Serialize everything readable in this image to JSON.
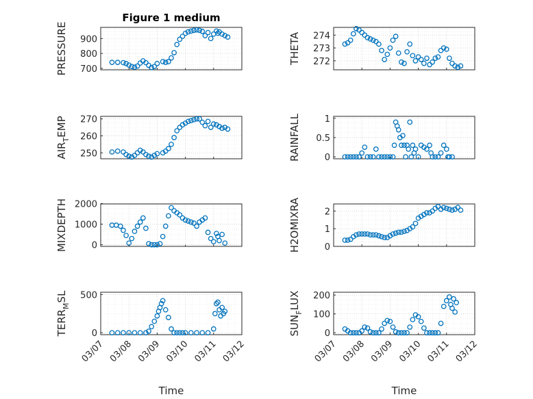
{
  "figure": {
    "title": "Figure 1 medium",
    "marker_color": "#0072BD"
  },
  "chart_data": [
    {
      "type": "scatter",
      "title": "Figure 1 medium",
      "ylabel": "PRESSURE",
      "xlabel": "",
      "ylim": [
        690,
        975
      ],
      "yticks": [
        700,
        800,
        900
      ],
      "xlim": [
        0,
        5
      ],
      "xticks": [
        "03/07",
        "03/08",
        "03/09",
        "03/10",
        "03/11",
        "03/12"
      ],
      "x": [
        0.4,
        0.6,
        0.8,
        0.9,
        1.0,
        1.1,
        1.2,
        1.3,
        1.4,
        1.5,
        1.6,
        1.7,
        1.8,
        1.9,
        2.0,
        2.2,
        2.3,
        2.4,
        2.5,
        2.6,
        2.7,
        2.8,
        2.9,
        3.0,
        3.1,
        3.2,
        3.3,
        3.4,
        3.5,
        3.6,
        3.7,
        3.8,
        3.9,
        4.0,
        4.1,
        4.15,
        4.2,
        4.3,
        4.4,
        4.5
      ],
      "y": [
        740,
        740,
        738,
        732,
        722,
        712,
        708,
        715,
        735,
        750,
        738,
        720,
        705,
        712,
        732,
        745,
        740,
        745,
        770,
        805,
        860,
        895,
        915,
        935,
        945,
        950,
        955,
        958,
        955,
        948,
        920,
        940,
        900,
        930,
        950,
        935,
        945,
        930,
        920,
        910
      ]
    },
    {
      "type": "scatter",
      "ylabel": "THETA",
      "xlabel": "",
      "ylim": [
        271.3,
        274.6
      ],
      "yticks": [
        272,
        273,
        274
      ],
      "xlim": [
        0,
        5
      ],
      "xticks": [
        "03/07",
        "03/08",
        "03/09",
        "03/10",
        "03/11",
        "03/12"
      ],
      "x": [
        0.4,
        0.5,
        0.6,
        0.7,
        0.8,
        0.9,
        1.0,
        1.1,
        1.2,
        1.3,
        1.4,
        1.5,
        1.6,
        1.7,
        1.8,
        1.9,
        2.0,
        2.1,
        2.2,
        2.3,
        2.4,
        2.5,
        2.6,
        2.7,
        2.8,
        2.9,
        3.0,
        3.1,
        3.2,
        3.3,
        3.4,
        3.5,
        3.6,
        3.7,
        3.8,
        3.9,
        4.0,
        4.1,
        4.2,
        4.3,
        4.4,
        4.5
      ],
      "y": [
        273.3,
        273.4,
        273.6,
        274.1,
        274.5,
        274.4,
        274.2,
        274.0,
        273.8,
        273.7,
        273.6,
        273.5,
        273.3,
        272.8,
        272.1,
        272.5,
        273.0,
        273.6,
        273.9,
        272.6,
        271.9,
        271.8,
        272.7,
        273.3,
        272.4,
        272.0,
        272.3,
        272.1,
        271.8,
        272.2,
        271.7,
        271.9,
        272.2,
        272.3,
        272.8,
        273.0,
        272.9,
        272.2,
        271.8,
        271.6,
        271.5,
        271.6
      ]
    },
    {
      "type": "scatter",
      "ylabel": "AIR_TEMP",
      "xlabel": "",
      "ylim": [
        246.5,
        271.5
      ],
      "yticks": [
        250,
        260,
        270
      ],
      "xlim": [
        0,
        5
      ],
      "xticks": [
        "03/07",
        "03/08",
        "03/09",
        "03/10",
        "03/11",
        "03/12"
      ],
      "x": [
        0.4,
        0.6,
        0.8,
        0.9,
        1.0,
        1.1,
        1.2,
        1.3,
        1.4,
        1.5,
        1.6,
        1.7,
        1.8,
        1.9,
        2.0,
        2.2,
        2.3,
        2.4,
        2.5,
        2.6,
        2.7,
        2.8,
        2.9,
        3.0,
        3.1,
        3.2,
        3.3,
        3.4,
        3.5,
        3.6,
        3.7,
        3.8,
        3.9,
        4.0,
        4.1,
        4.2,
        4.3,
        4.4,
        4.5
      ],
      "y": [
        250.5,
        251,
        250.5,
        249,
        248,
        247.5,
        248.5,
        250,
        251.5,
        250.5,
        249,
        248,
        247.5,
        248.5,
        249.5,
        250,
        251,
        252.5,
        255,
        259,
        263,
        265,
        266.5,
        267.5,
        268.5,
        269,
        269.5,
        270,
        270,
        268,
        266,
        268.5,
        265,
        267,
        266.5,
        265.5,
        264.5,
        265,
        264
      ]
    },
    {
      "type": "scatter",
      "ylabel": "RAINFALL",
      "xlabel": "",
      "ylim": [
        -0.05,
        1.05
      ],
      "yticks": [
        0,
        0.5,
        1
      ],
      "xlim": [
        0,
        5
      ],
      "xticks": [
        "03/07",
        "03/08",
        "03/09",
        "03/10",
        "03/11",
        "03/12"
      ],
      "x": [
        0.4,
        0.5,
        0.6,
        0.7,
        0.8,
        0.9,
        1.0,
        1.1,
        1.2,
        1.3,
        1.4,
        1.5,
        1.6,
        1.7,
        1.8,
        1.9,
        2.0,
        2.1,
        2.15,
        2.2,
        2.25,
        2.3,
        2.35,
        2.4,
        2.45,
        2.5,
        2.55,
        2.6,
        2.65,
        2.7,
        2.75,
        2.8,
        2.85,
        2.9,
        3.0,
        3.1,
        3.2,
        3.3,
        3.4,
        3.45,
        3.5,
        3.6,
        3.7,
        3.8,
        3.9,
        4.0,
        4.05,
        4.1,
        4.2
      ],
      "y": [
        0,
        0,
        0,
        0,
        0,
        0,
        0.1,
        0.25,
        0,
        0,
        0,
        0.2,
        0,
        0,
        0,
        0,
        0,
        0,
        0.3,
        0.9,
        0.8,
        0.7,
        0.5,
        0.3,
        0.55,
        0.3,
        0,
        0.3,
        0.2,
        0.9,
        0,
        0.3,
        0.1,
        0.2,
        0,
        0.3,
        0.25,
        0.2,
        0.3,
        0.1,
        0,
        0,
        0,
        0.1,
        0.3,
        0.2,
        0,
        0,
        0
      ]
    },
    {
      "type": "scatter",
      "ylabel": "MIXDEPTH",
      "xlabel": "",
      "ylim": [
        -80,
        1980
      ],
      "yticks": [
        0,
        1000,
        2000
      ],
      "xlim": [
        0,
        5
      ],
      "xticks": [
        "03/07",
        "03/08",
        "03/09",
        "03/10",
        "03/11",
        "03/12"
      ],
      "x": [
        0.4,
        0.55,
        0.7,
        0.8,
        0.9,
        1.0,
        1.1,
        1.2,
        1.3,
        1.4,
        1.5,
        1.6,
        1.7,
        1.8,
        1.9,
        2.0,
        2.1,
        2.2,
        2.3,
        2.4,
        2.5,
        2.6,
        2.7,
        2.8,
        2.9,
        3.0,
        3.1,
        3.2,
        3.3,
        3.4,
        3.5,
        3.6,
        3.7,
        3.8,
        3.9,
        4.0,
        4.1,
        4.15,
        4.2,
        4.3,
        4.4
      ],
      "y": [
        950,
        950,
        900,
        700,
        450,
        80,
        300,
        650,
        900,
        1100,
        1300,
        800,
        50,
        0,
        0,
        0,
        50,
        400,
        900,
        1400,
        1800,
        1650,
        1550,
        1450,
        1300,
        1200,
        1150,
        1100,
        1050,
        900,
        1100,
        1200,
        1300,
        600,
        300,
        150,
        550,
        400,
        200,
        500,
        80
      ]
    },
    {
      "type": "scatter",
      "ylabel": "H2OMIXRA",
      "xlabel": "",
      "ylim": [
        0,
        2.4
      ],
      "yticks": [
        0,
        1,
        2
      ],
      "xlim": [
        0,
        5
      ],
      "xticks": [
        "03/07",
        "03/08",
        "03/09",
        "03/10",
        "03/11",
        "03/12"
      ],
      "x": [
        0.4,
        0.5,
        0.6,
        0.7,
        0.8,
        0.9,
        1.0,
        1.1,
        1.2,
        1.3,
        1.4,
        1.5,
        1.6,
        1.7,
        1.8,
        1.9,
        2.0,
        2.1,
        2.2,
        2.3,
        2.4,
        2.5,
        2.6,
        2.7,
        2.8,
        2.9,
        3.0,
        3.1,
        3.2,
        3.3,
        3.4,
        3.5,
        3.6,
        3.7,
        3.8,
        3.9,
        4.0,
        4.1,
        4.2,
        4.3,
        4.4,
        4.5
      ],
      "y": [
        0.35,
        0.35,
        0.4,
        0.55,
        0.65,
        0.7,
        0.7,
        0.7,
        0.7,
        0.65,
        0.65,
        0.65,
        0.6,
        0.55,
        0.5,
        0.5,
        0.6,
        0.7,
        0.75,
        0.8,
        0.8,
        0.85,
        0.9,
        1.0,
        1.1,
        1.3,
        1.6,
        1.7,
        1.8,
        1.9,
        1.9,
        2.0,
        2.15,
        2.25,
        2.1,
        2.2,
        2.15,
        2.1,
        2.05,
        2.1,
        2.2,
        2.05
      ]
    },
    {
      "type": "scatter",
      "ylabel": "TERR_MSL",
      "xlabel": "Time",
      "ylim": [
        -25,
        530
      ],
      "yticks": [
        0,
        500
      ],
      "xlim": [
        0,
        5
      ],
      "xticks": [
        "03/07",
        "03/08",
        "03/09",
        "03/10",
        "03/11",
        "03/12"
      ],
      "x": [
        0.4,
        0.6,
        0.8,
        1.0,
        1.2,
        1.4,
        1.6,
        1.7,
        1.8,
        1.9,
        2.0,
        2.05,
        2.1,
        2.15,
        2.2,
        2.3,
        2.4,
        2.5,
        2.6,
        2.7,
        2.8,
        2.9,
        3.0,
        3.2,
        3.4,
        3.6,
        3.8,
        4.0,
        4.05,
        4.1,
        4.15,
        4.2,
        4.25,
        4.3,
        4.35,
        4.4
      ],
      "y": [
        0,
        0,
        0,
        0,
        0,
        0,
        0,
        20,
        80,
        150,
        220,
        280,
        330,
        380,
        420,
        300,
        200,
        50,
        0,
        0,
        0,
        0,
        0,
        0,
        0,
        0,
        0,
        50,
        250,
        380,
        400,
        300,
        220,
        330,
        250,
        280
      ]
    },
    {
      "type": "scatter",
      "ylabel": "SUN_FLUX",
      "xlabel": "Time",
      "ylim": [
        -10,
        215
      ],
      "yticks": [
        0,
        100,
        200
      ],
      "xlim": [
        0,
        5
      ],
      "xticks": [
        "03/07",
        "03/08",
        "03/09",
        "03/10",
        "03/11",
        "03/12"
      ],
      "x": [
        0.4,
        0.5,
        0.6,
        0.7,
        0.8,
        0.9,
        1.0,
        1.1,
        1.2,
        1.3,
        1.4,
        1.5,
        1.6,
        1.7,
        1.8,
        1.9,
        2.0,
        2.1,
        2.2,
        2.3,
        2.4,
        2.5,
        2.6,
        2.7,
        2.8,
        2.9,
        3.0,
        3.1,
        3.2,
        3.3,
        3.4,
        3.5,
        3.6,
        3.7,
        3.8,
        3.9,
        4.0,
        4.1,
        4.15,
        4.2,
        4.25,
        4.3,
        4.35
      ],
      "y": [
        20,
        10,
        0,
        0,
        0,
        0,
        10,
        30,
        25,
        5,
        0,
        0,
        0,
        20,
        50,
        65,
        60,
        30,
        5,
        0,
        0,
        0,
        0,
        30,
        70,
        95,
        85,
        60,
        25,
        0,
        0,
        0,
        0,
        0,
        50,
        140,
        170,
        190,
        150,
        130,
        180,
        110,
        160
      ]
    }
  ]
}
